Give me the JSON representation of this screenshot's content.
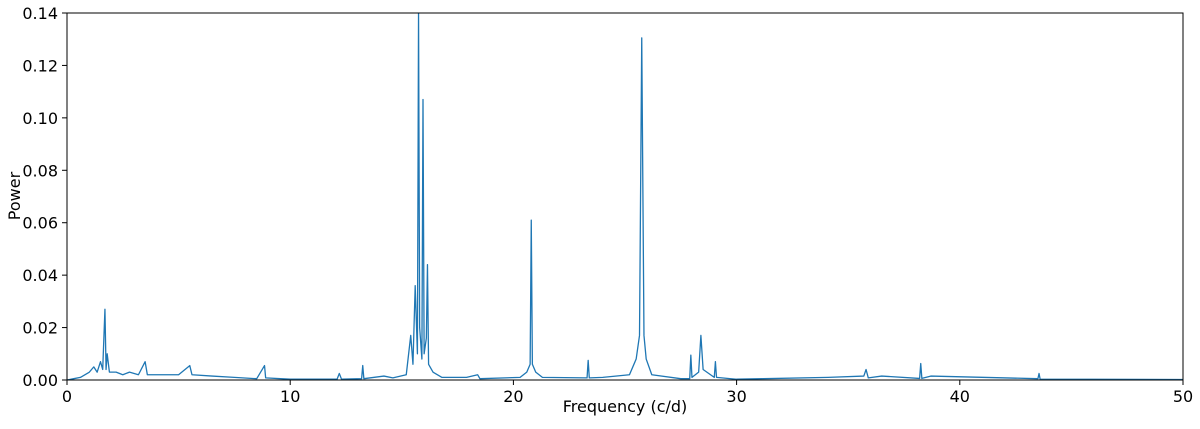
{
  "chart_data": {
    "type": "line",
    "xlabel": "Frequency (c/d)",
    "ylabel": "Power",
    "color": "#1f77b4",
    "xlim": [
      0,
      50
    ],
    "xticks": [
      0,
      10,
      20,
      30,
      40,
      50
    ],
    "ylim": [
      0,
      0.14
    ],
    "yticks": [
      {
        "value": 0,
        "label": "0.00"
      },
      0.02,
      0.04,
      0.06,
      0.08,
      {
        "value": 0.1,
        "label": "0.10"
      },
      0.12,
      0.14
    ],
    "x": [
      0,
      0.3,
      0.6,
      1.0,
      1.2,
      1.35,
      1.5,
      1.6,
      1.7,
      1.75,
      1.8,
      1.9,
      2.2,
      2.5,
      2.8,
      3.2,
      3.5,
      3.6,
      4.2,
      5.0,
      5.5,
      5.6,
      6.5,
      7.5,
      8.5,
      8.85,
      8.9,
      10,
      12.1,
      12.2,
      12.3,
      13.2,
      13.25,
      13.3,
      14.2,
      14.6,
      15.2,
      15.4,
      15.5,
      15.6,
      15.7,
      15.75,
      15.8,
      15.9,
      15.95,
      16.0,
      16.1,
      16.15,
      16.2,
      16.4,
      16.8,
      17.9,
      18.4,
      18.5,
      20.3,
      20.6,
      20.75,
      20.8,
      20.85,
      21.0,
      21.3,
      23.3,
      23.35,
      23.4,
      24,
      25.2,
      25.5,
      25.65,
      25.75,
      25.85,
      25.95,
      26.2,
      27.5,
      27.9,
      27.95,
      28.0,
      28.3,
      28.4,
      28.5,
      29.0,
      29.05,
      29.1,
      30,
      31.2,
      34.1,
      35.7,
      35.8,
      35.9,
      36.5,
      38.2,
      38.25,
      38.3,
      38.7,
      43.5,
      43.55,
      43.6,
      50
    ],
    "values": [
      0,
      0.0005,
      0.001,
      0.003,
      0.005,
      0.003,
      0.007,
      0.004,
      0.027,
      0.004,
      0.01,
      0.003,
      0.003,
      0.002,
      0.003,
      0.002,
      0.007,
      0.002,
      0.002,
      0.002,
      0.0055,
      0.002,
      0.0015,
      0.001,
      0.0005,
      0.0055,
      0.0008,
      0.0003,
      0.0003,
      0.0025,
      0.0003,
      0.0005,
      0.0055,
      0.0005,
      0.0015,
      0.0008,
      0.002,
      0.017,
      0.006,
      0.036,
      0.01,
      0.14,
      0.02,
      0.008,
      0.107,
      0.01,
      0.016,
      0.044,
      0.006,
      0.003,
      0.001,
      0.001,
      0.002,
      0.0005,
      0.001,
      0.003,
      0.006,
      0.061,
      0.006,
      0.003,
      0.001,
      0.0008,
      0.0075,
      0.0008,
      0.001,
      0.002,
      0.008,
      0.017,
      0.1305,
      0.017,
      0.008,
      0.002,
      0.0005,
      0.0005,
      0.0095,
      0.001,
      0.003,
      0.017,
      0.004,
      0.001,
      0.007,
      0.001,
      0.0003,
      0.0005,
      0.001,
      0.0015,
      0.004,
      0.0008,
      0.0015,
      0.0006,
      0.0063,
      0.0006,
      0.0015,
      0.0005,
      0.0025,
      0.0003,
      0.0002
    ]
  }
}
